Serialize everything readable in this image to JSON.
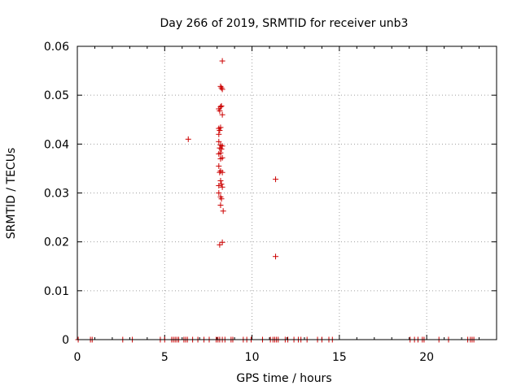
{
  "chart_data": {
    "type": "scatter",
    "title": "Day 266 of 2019, SRMTID for receiver unb3",
    "xlabel": "GPS time / hours",
    "ylabel": "SRMTID / TECUs",
    "xlim": [
      0,
      24
    ],
    "ylim": [
      0,
      0.06
    ],
    "x_ticks": [
      0,
      5,
      10,
      15,
      20
    ],
    "x_tick_labels": [
      "0",
      "5",
      "10",
      "15",
      "20"
    ],
    "y_ticks": [
      0,
      0.01,
      0.02,
      0.03,
      0.04,
      0.05,
      0.06
    ],
    "y_tick_labels": [
      "0",
      "0.01",
      "0.02",
      "0.03",
      "0.04",
      "0.05",
      "0.06"
    ],
    "grid": true,
    "marker": "+",
    "series": [
      {
        "name": "SRMTID",
        "color": "#cc0000",
        "points": [
          [
            8.3,
            0.057
          ],
          [
            8.2,
            0.0518
          ],
          [
            8.3,
            0.0512
          ],
          [
            8.25,
            0.0515
          ],
          [
            8.1,
            0.0472
          ],
          [
            8.2,
            0.0476
          ],
          [
            8.15,
            0.0468
          ],
          [
            8.25,
            0.0478
          ],
          [
            8.3,
            0.046
          ],
          [
            8.1,
            0.0432
          ],
          [
            8.2,
            0.0434
          ],
          [
            8.15,
            0.0428
          ],
          [
            8.1,
            0.042
          ],
          [
            6.35,
            0.041
          ],
          [
            8.1,
            0.0405
          ],
          [
            8.2,
            0.0398
          ],
          [
            8.3,
            0.0396
          ],
          [
            8.15,
            0.0392
          ],
          [
            8.25,
            0.039
          ],
          [
            8.2,
            0.0382
          ],
          [
            8.1,
            0.038
          ],
          [
            8.2,
            0.037
          ],
          [
            8.3,
            0.0372
          ],
          [
            8.1,
            0.0355
          ],
          [
            8.2,
            0.0345
          ],
          [
            8.15,
            0.0342
          ],
          [
            8.3,
            0.0342
          ],
          [
            11.35,
            0.0328
          ],
          [
            8.2,
            0.0325
          ],
          [
            8.1,
            0.0315
          ],
          [
            8.25,
            0.0318
          ],
          [
            8.3,
            0.0312
          ],
          [
            8.1,
            0.03
          ],
          [
            8.2,
            0.0292
          ],
          [
            8.25,
            0.0288
          ],
          [
            8.2,
            0.0275
          ],
          [
            8.35,
            0.0263
          ],
          [
            8.3,
            0.0199
          ],
          [
            8.15,
            0.0194
          ],
          [
            11.35,
            0.017
          ],
          [
            0.05,
            0
          ],
          [
            0.75,
            0
          ],
          [
            0.85,
            0
          ],
          [
            2.6,
            0
          ],
          [
            3.15,
            0
          ],
          [
            4.75,
            0
          ],
          [
            5.0,
            0
          ],
          [
            5.4,
            0
          ],
          [
            5.5,
            0
          ],
          [
            5.6,
            0
          ],
          [
            5.7,
            0
          ],
          [
            5.8,
            0
          ],
          [
            6.1,
            0
          ],
          [
            6.2,
            0
          ],
          [
            6.3,
            0
          ],
          [
            6.6,
            0
          ],
          [
            6.9,
            0
          ],
          [
            7.25,
            0
          ],
          [
            7.55,
            0
          ],
          [
            7.95,
            0
          ],
          [
            8.05,
            0
          ],
          [
            8.15,
            0
          ],
          [
            8.3,
            0
          ],
          [
            8.45,
            0
          ],
          [
            8.8,
            0
          ],
          [
            8.9,
            0
          ],
          [
            9.5,
            0
          ],
          [
            9.7,
            0
          ],
          [
            9.95,
            0
          ],
          [
            10.6,
            0
          ],
          [
            11.05,
            0
          ],
          [
            11.2,
            0
          ],
          [
            11.3,
            0
          ],
          [
            11.4,
            0
          ],
          [
            11.5,
            0
          ],
          [
            11.9,
            0
          ],
          [
            12.05,
            0
          ],
          [
            12.4,
            0
          ],
          [
            12.65,
            0
          ],
          [
            12.8,
            0
          ],
          [
            13.15,
            0
          ],
          [
            13.75,
            0
          ],
          [
            14.0,
            0
          ],
          [
            14.4,
            0
          ],
          [
            14.6,
            0
          ],
          [
            19.05,
            0
          ],
          [
            19.3,
            0
          ],
          [
            19.5,
            0
          ],
          [
            19.75,
            0
          ],
          [
            19.85,
            0
          ],
          [
            20.7,
            0
          ],
          [
            21.25,
            0
          ],
          [
            22.35,
            0
          ],
          [
            22.5,
            0
          ],
          [
            22.6,
            0
          ],
          [
            22.7,
            0
          ]
        ]
      }
    ]
  }
}
